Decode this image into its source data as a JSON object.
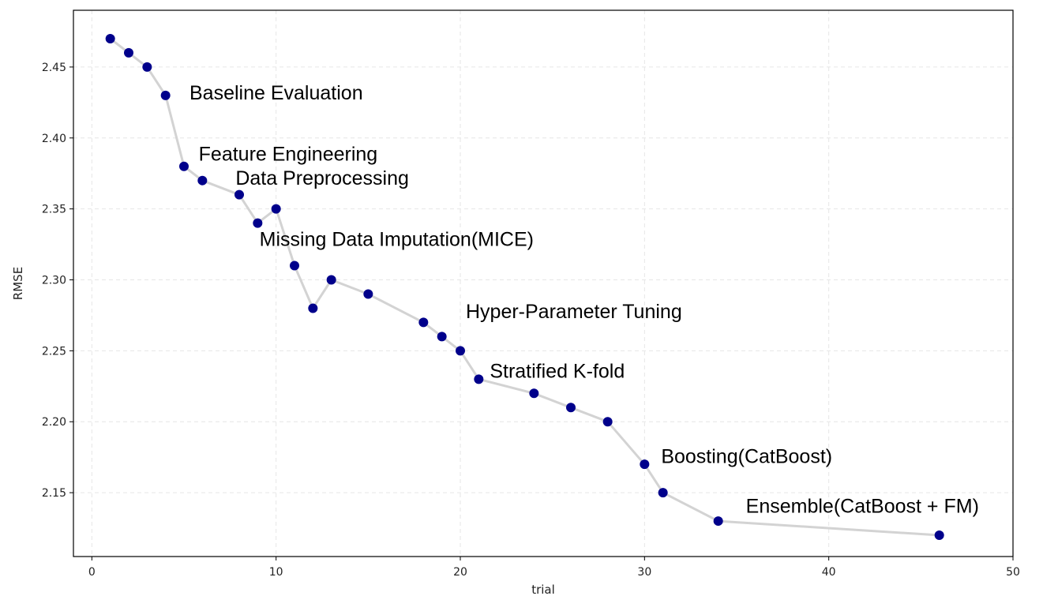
{
  "chart_data": {
    "type": "line",
    "title": "",
    "xlabel": "trial",
    "ylabel": "RMSE",
    "xlim": [
      -1,
      50
    ],
    "ylim": [
      2.105,
      2.49
    ],
    "xticks": [
      0,
      10,
      20,
      30,
      40,
      50
    ],
    "yticks": [
      2.15,
      2.2,
      2.25,
      2.3,
      2.35,
      2.4,
      2.45
    ],
    "ytick_labels": [
      "2.15",
      "2.20",
      "2.25",
      "2.30",
      "2.35",
      "2.40",
      "2.45"
    ],
    "grid": true,
    "line_color": "#d3d3d3",
    "marker_color": "#00008b",
    "series": [
      {
        "x": [
          1,
          2,
          3,
          4,
          5,
          6,
          8,
          9,
          10,
          11,
          12,
          13,
          15,
          18,
          19,
          20,
          21,
          24,
          26,
          28,
          30,
          31,
          34,
          46
        ],
        "y": [
          2.47,
          2.46,
          2.45,
          2.43,
          2.38,
          2.37,
          2.36,
          2.34,
          2.35,
          2.31,
          2.28,
          2.3,
          2.29,
          2.27,
          2.26,
          2.25,
          2.23,
          2.22,
          2.21,
          2.2,
          2.17,
          2.15,
          2.13,
          2.12
        ]
      }
    ],
    "annotations": [
      {
        "text": "Baseline Evaluation",
        "x": 5.3,
        "y": 2.427
      },
      {
        "text": "Feature Engineering",
        "x": 5.8,
        "y": 2.384
      },
      {
        "text": "Data Preprocessing",
        "x": 7.8,
        "y": 2.367
      },
      {
        "text": "Missing Data Imputation(MICE)",
        "x": 9.1,
        "y": 2.324
      },
      {
        "text": "Hyper-Parameter Tuning",
        "x": 20.3,
        "y": 2.273
      },
      {
        "text": "Stratified K-fold",
        "x": 21.6,
        "y": 2.231
      },
      {
        "text": "Boosting(CatBoost)",
        "x": 30.9,
        "y": 2.171
      },
      {
        "text": "Ensemble(CatBoost + FM)",
        "x": 35.5,
        "y": 2.136
      }
    ]
  }
}
